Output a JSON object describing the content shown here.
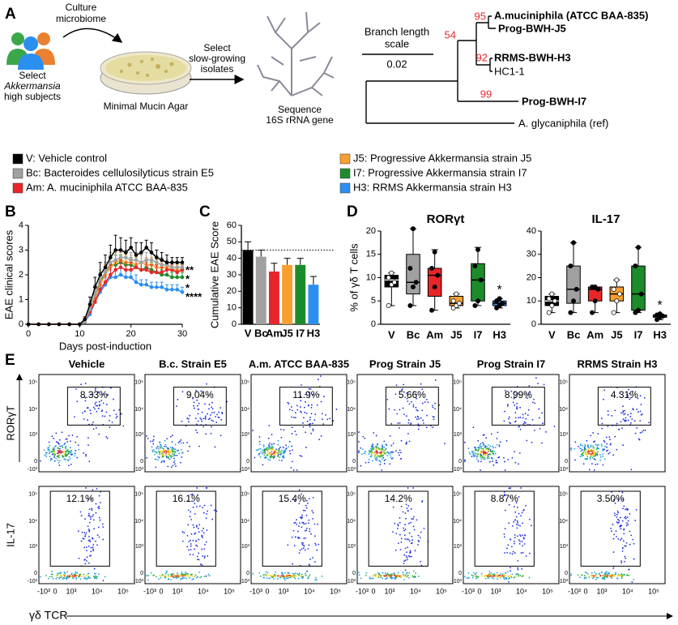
{
  "panel_a": {
    "label": "A",
    "subjects": [
      "Select",
      "Akkermansia",
      "high subjects"
    ],
    "culture": [
      "Culture",
      "microbiome"
    ],
    "agar": "Minimal Mucin Agar",
    "select": [
      "Select",
      "slow-growing",
      "isolates"
    ],
    "sequence": [
      "Sequence",
      "16S rRNA gene"
    ],
    "scale": {
      "title": [
        "Branch length",
        "scale"
      ],
      "value": "0.02"
    },
    "tree": {
      "leaves": [
        {
          "label": "A.muciniphila (ATCC BAA-835)",
          "color": "#e8262a"
        },
        {
          "label": "Prog-BWH-J5",
          "color": "#f7a031"
        },
        {
          "label": "RRMS-BWH-H3",
          "color": "#2b8ff0"
        },
        {
          "label": "HC1-1",
          "color": "#000000"
        },
        {
          "label": "Prog-BWH-I7",
          "color": "#1c8c2a"
        },
        {
          "label": "A. glycaniphila (ref)",
          "color": "#000000"
        }
      ],
      "bootstrap": [
        "95",
        "54",
        "92",
        "99"
      ]
    }
  },
  "legend": [
    {
      "label": "V: Vehicle control",
      "color": "#000000"
    },
    {
      "label": "Bc: Bacteroides cellulosilyticus strain E5",
      "color": "#a0a0a0"
    },
    {
      "label": "Am: A. muciniphila ATCC BAA-835",
      "color": "#e8262a"
    },
    {
      "label": "J5: Progressive Akkermansia strain J5",
      "color": "#f7a031"
    },
    {
      "label": "I7: Progressive Akkermansia strain I7",
      "color": "#1c8c2a"
    },
    {
      "label": "H3: RRMS Akkermansia strain H3",
      "color": "#2b8ff0"
    }
  ],
  "chart_data": [
    {
      "type": "line",
      "panel": "B",
      "ylabel": "EAE clinical scores",
      "xlabel": "Days post-induction",
      "x": [
        0,
        2,
        4,
        6,
        8,
        10,
        11,
        12,
        13,
        14,
        15,
        16,
        17,
        18,
        19,
        20,
        21,
        22,
        23,
        24,
        25,
        26,
        27,
        28,
        29,
        30
      ],
      "xlim": [
        0,
        30
      ],
      "xticks": [
        0,
        10,
        20,
        30
      ],
      "ylim": [
        0,
        4
      ],
      "yticks": [
        0,
        1,
        2,
        3,
        4
      ],
      "series": [
        {
          "color": "#2b8ff0",
          "values": [
            0,
            0,
            0,
            0,
            0,
            0,
            0.1,
            0.4,
            0.9,
            1.3,
            1.6,
            1.9,
            1.9,
            2.0,
            1.9,
            1.9,
            1.7,
            1.6,
            1.6,
            1.5,
            1.5,
            1.5,
            1.4,
            1.4,
            1.4,
            1.3
          ],
          "errors": [
            0,
            0,
            0,
            0,
            0,
            0,
            0.1,
            0.2,
            0.3,
            0.3,
            0.3,
            0.3,
            0.3,
            0.3,
            0.3,
            0.3,
            0.3,
            0.2,
            0.2,
            0.2,
            0.2,
            0.2,
            0.2,
            0.2,
            0.2,
            0.2
          ]
        },
        {
          "color": "#1c8c2a",
          "values": [
            0,
            0,
            0,
            0,
            0,
            0,
            0.1,
            0.6,
            1.2,
            1.7,
            2.1,
            2.4,
            2.4,
            2.5,
            2.4,
            2.4,
            2.3,
            2.2,
            2.3,
            2.2,
            2.1,
            2.0,
            2.0,
            1.9,
            1.9,
            1.9
          ],
          "errors": [
            0,
            0,
            0,
            0,
            0,
            0,
            0.1,
            0.2,
            0.3,
            0.4,
            0.4,
            0.4,
            0.4,
            0.3,
            0.3,
            0.3,
            0.3,
            0.3,
            0.3,
            0.3,
            0.3,
            0.2,
            0.2,
            0.2,
            0.2,
            0.2
          ]
        },
        {
          "color": "#f7a031",
          "values": [
            0,
            0,
            0,
            0,
            0,
            0,
            0.1,
            0.5,
            1.0,
            1.6,
            2.0,
            2.3,
            2.5,
            2.6,
            2.5,
            2.5,
            2.4,
            2.5,
            2.4,
            2.4,
            2.3,
            2.3,
            2.3,
            2.2,
            2.2,
            2.2
          ],
          "errors": [
            0,
            0,
            0,
            0,
            0,
            0,
            0.1,
            0.2,
            0.3,
            0.4,
            0.4,
            0.4,
            0.4,
            0.3,
            0.3,
            0.3,
            0.3,
            0.3,
            0.3,
            0.3,
            0.3,
            0.2,
            0.2,
            0.2,
            0.2,
            0.2
          ]
        },
        {
          "color": "#e8262a",
          "values": [
            0,
            0,
            0,
            0,
            0,
            0,
            0.1,
            0.5,
            0.9,
            1.4,
            1.7,
            2.0,
            2.2,
            2.3,
            2.2,
            2.2,
            2.3,
            2.2,
            2.2,
            2.1,
            2.1,
            2.1,
            2.2,
            2.2,
            2.1,
            2.2
          ],
          "errors": [
            0,
            0,
            0,
            0,
            0,
            0,
            0.1,
            0.2,
            0.3,
            0.4,
            0.4,
            0.4,
            0.4,
            0.3,
            0.3,
            0.3,
            0.3,
            0.3,
            0.3,
            0.3,
            0.3,
            0.2,
            0.2,
            0.2,
            0.2,
            0.2
          ]
        },
        {
          "color": "#a0a0a0",
          "values": [
            0,
            0,
            0,
            0,
            0,
            0,
            0.1,
            0.6,
            1.2,
            1.8,
            2.1,
            2.5,
            2.6,
            2.7,
            2.7,
            2.6,
            2.6,
            2.5,
            2.6,
            2.6,
            2.5,
            2.4,
            2.4,
            2.3,
            2.3,
            2.3
          ],
          "errors": [
            0,
            0,
            0,
            0,
            0,
            0,
            0.1,
            0.3,
            0.4,
            0.4,
            0.4,
            0.4,
            0.4,
            0.3,
            0.3,
            0.3,
            0.3,
            0.3,
            0.3,
            0.3,
            0.3,
            0.3,
            0.2,
            0.2,
            0.2,
            0.2
          ]
        },
        {
          "color": "#000000",
          "values": [
            0,
            0,
            0,
            0,
            0,
            0,
            0.2,
            0.8,
            1.5,
            2.0,
            2.3,
            2.7,
            3.0,
            3.0,
            2.9,
            3.1,
            2.8,
            2.9,
            3.1,
            2.9,
            2.7,
            2.6,
            2.5,
            2.5,
            2.5,
            2.5
          ],
          "errors": [
            0,
            0,
            0,
            0,
            0,
            0,
            0.1,
            0.3,
            0.4,
            0.5,
            0.5,
            0.5,
            0.6,
            0.5,
            0.5,
            0.4,
            0.5,
            0.4,
            0.3,
            0.4,
            0.3,
            0.3,
            0.3,
            0.2,
            0.2,
            0.2
          ]
        }
      ],
      "annotations": [
        {
          "text": "**",
          "color": "#e8262a"
        },
        {
          "text": "*",
          "color": "#f7a031"
        },
        {
          "text": "*",
          "color": "#1c8c2a"
        },
        {
          "text": "****",
          "color": "#2b8ff0"
        }
      ]
    },
    {
      "type": "bar",
      "panel": "C",
      "ylabel": "Cumulative EAE Score",
      "categories": [
        "V",
        "Bc",
        "Am",
        "J5",
        "I7",
        "H3"
      ],
      "values": [
        45,
        41,
        32,
        36,
        36,
        24
      ],
      "errors": [
        5,
        4,
        5,
        4,
        4,
        5
      ],
      "colors": [
        "#000000",
        "#a0a0a0",
        "#e8262a",
        "#f7a031",
        "#1c8c2a",
        "#2b8ff0"
      ],
      "ylim": [
        0,
        60
      ],
      "yticks": [
        0,
        10,
        20,
        30,
        40,
        50,
        60
      ],
      "reference_line": 45
    },
    {
      "type": "box",
      "panel": "D",
      "title": "RORγt",
      "ylabel": "% of γδ T cells",
      "categories": [
        "V",
        "Bc",
        "Am",
        "J5",
        "I7",
        "H3"
      ],
      "colors": [
        "#000000",
        "#a0a0a0",
        "#e8262a",
        "#f7a031",
        "#1c8c2a",
        "#2b8ff0"
      ],
      "ylim": [
        0,
        20
      ],
      "yticks": [
        0,
        5,
        10,
        15,
        20
      ],
      "boxes": [
        {
          "min": 4,
          "q1": 8,
          "median": 9.5,
          "q3": 10.5,
          "max": 11,
          "points": [
            4,
            8.5,
            9,
            10,
            11
          ]
        },
        {
          "min": 4,
          "q1": 6.5,
          "median": 9,
          "q3": 15,
          "max": 20.5,
          "points": [
            4,
            8,
            9,
            12,
            20.5
          ]
        },
        {
          "min": 3,
          "q1": 6,
          "median": 10.5,
          "q3": 12,
          "max": 16,
          "points": [
            3,
            8,
            10.5,
            12,
            15.5
          ]
        },
        {
          "min": 3.5,
          "q1": 4,
          "median": 4.5,
          "q3": 6,
          "max": 6.5,
          "points": [
            3.5,
            4,
            4.5,
            5,
            6.5
          ]
        },
        {
          "min": 4,
          "q1": 5,
          "median": 9.5,
          "q3": 13,
          "max": 16.5,
          "points": [
            4,
            5,
            9.5,
            12.5,
            16
          ]
        },
        {
          "min": 3.5,
          "q1": 4,
          "median": 4.5,
          "q3": 5,
          "max": 5.5,
          "points": [
            3.5,
            4,
            4.5,
            5,
            5.5
          ]
        }
      ],
      "annotations": [
        {
          "text": "*",
          "color": "#2b8ff0"
        }
      ]
    },
    {
      "type": "box",
      "title": "IL-17",
      "categories": [
        "V",
        "Bc",
        "Am",
        "J5",
        "I7",
        "H3"
      ],
      "colors": [
        "#000000",
        "#a0a0a0",
        "#e8262a",
        "#f7a031",
        "#1c8c2a",
        "#2b8ff0"
      ],
      "ylim": [
        0,
        40
      ],
      "yticks": [
        0,
        10,
        20,
        30,
        40
      ],
      "boxes": [
        {
          "min": 5,
          "q1": 8,
          "median": 10,
          "q3": 12,
          "max": 13,
          "points": [
            5,
            8,
            10,
            11,
            13
          ]
        },
        {
          "min": 5,
          "q1": 9,
          "median": 15,
          "q3": 25,
          "max": 35,
          "points": [
            5,
            10,
            15,
            25,
            35
          ]
        },
        {
          "min": 5,
          "q1": 10,
          "median": 15,
          "q3": 16,
          "max": 16,
          "points": [
            5,
            10,
            15,
            16,
            16
          ]
        },
        {
          "min": 5,
          "q1": 10,
          "median": 13,
          "q3": 16,
          "max": 19,
          "points": [
            5,
            10,
            13,
            15,
            19
          ]
        },
        {
          "min": 5,
          "q1": 6,
          "median": 13,
          "q3": 25,
          "max": 33,
          "points": [
            5,
            6,
            13,
            25,
            33
          ]
        },
        {
          "min": 2,
          "q1": 3,
          "median": 3.5,
          "q3": 4,
          "max": 4.5,
          "points": [
            2,
            3,
            3.5,
            4,
            4.5
          ]
        }
      ],
      "annotations": [
        {
          "text": "*",
          "color": "#2b8ff0"
        }
      ]
    }
  ],
  "panel_e": {
    "label": "E",
    "columns": [
      {
        "title": "Vehicle",
        "color": "#000000"
      },
      {
        "title": "B.c. Strain E5",
        "color": "#a0a0a0"
      },
      {
        "title": "A.m. ATCC BAA-835",
        "color": "#e8262a"
      },
      {
        "title": "Prog Strain J5",
        "color": "#f7a031"
      },
      {
        "title": "Prog Strain I7",
        "color": "#1c8c2a"
      },
      {
        "title": "RRMS Strain H3",
        "color": "#2b8ff0"
      }
    ],
    "rows": [
      {
        "label": "RORγT",
        "percentages": [
          "8.33%",
          "9.04%",
          "11.9%",
          "5.66%",
          "8.99%",
          "4.31%"
        ]
      },
      {
        "label": "IL-17",
        "percentages": [
          "12.1%",
          "16.1%",
          "15.4%",
          "14.2%",
          "8.87%",
          "3.50%"
        ]
      }
    ],
    "axis_ticks": [
      "-10³",
      "0",
      "10³",
      "10⁴",
      "10⁵"
    ],
    "x_label": "γδ TCR"
  }
}
